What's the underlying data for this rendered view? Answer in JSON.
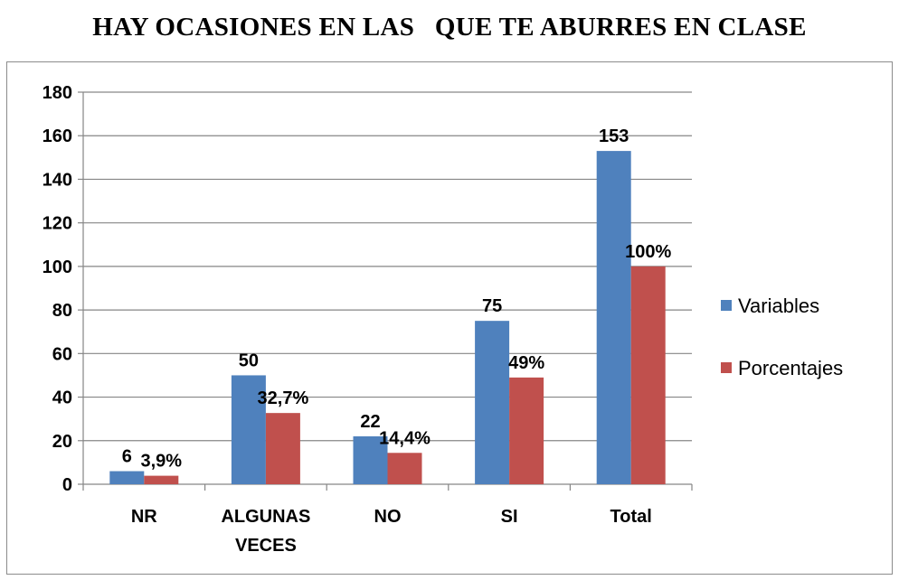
{
  "chart_data": {
    "type": "bar",
    "title": "HAY OCASIONES EN LAS   QUE TE ABURRES EN CLASE",
    "categories": [
      [
        "NR"
      ],
      [
        "ALGUNAS",
        "VECES"
      ],
      [
        "NO"
      ],
      [
        "SI"
      ],
      [
        "Total"
      ]
    ],
    "series": [
      {
        "name": "Variables",
        "color": "#4F81BD",
        "values": [
          6,
          50,
          22,
          75,
          153
        ],
        "labels": [
          "6",
          "50",
          "22",
          "75",
          "153"
        ]
      },
      {
        "name": "Porcentajes",
        "color": "#C0504D",
        "values": [
          3.9,
          32.7,
          14.4,
          49,
          100
        ],
        "labels": [
          "3,9%",
          "32,7%",
          "14,4%",
          "49%",
          "100%"
        ]
      }
    ],
    "ylim": [
      0,
      180
    ],
    "yticks": [
      0,
      20,
      40,
      60,
      80,
      100,
      120,
      140,
      160,
      180
    ],
    "grid": true,
    "legend_position": "right",
    "xlabel": "",
    "ylabel": ""
  }
}
